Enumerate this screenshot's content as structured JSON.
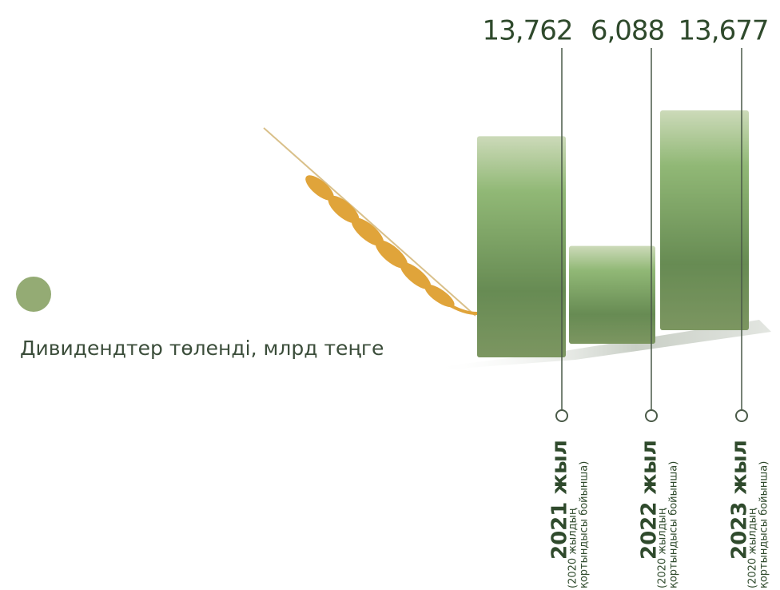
{
  "chart_data": {
    "type": "bar",
    "legend_label": "Дивидендтер төленді, млрд теңге",
    "color": "#94ab74",
    "categories": [
      "2021 жыл",
      "2022 жыл",
      "2023 жыл"
    ],
    "category_notes": [
      [
        "(2020 жылдың",
        "қортындысы бойынша)"
      ],
      [
        "(2020 жылдың",
        "қортындысы бойынша)"
      ],
      [
        "(2020 жылдың",
        "қортындысы бойынша)"
      ]
    ],
    "values": [
      13.762,
      6.088,
      13.677
    ],
    "value_labels": [
      "13,762",
      "6,088",
      "13,677"
    ]
  }
}
